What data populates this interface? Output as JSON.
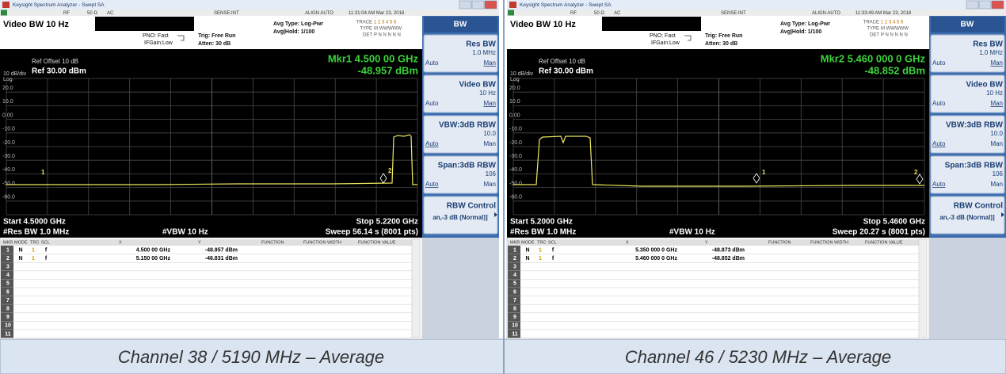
{
  "panels": [
    {
      "window_title": "Keysight Spectrum Analyzer - Swept SA",
      "status": [
        "RF",
        "50 Ω",
        "AC",
        "SENSE:INT",
        "ALIGN AUTO",
        "11:31:04 AM Mar 23, 2018"
      ],
      "active_function": "Video BW 10 Hz",
      "settings": [
        "PNO: Fast",
        "IFGain:Low",
        "Trig: Free Run",
        "Atten: 30 dB",
        "Avg Type: Log-Pwr",
        "Avg|Hold: 1/100"
      ],
      "trace_info": [
        "TRACE",
        "1 2 3 4 5 6",
        "TYPE",
        "M WWWWW",
        "DET",
        "P N N N N N"
      ],
      "ref_offset": "Ref Offset 10 dB",
      "scale": "10 dB/div",
      "log": "Log",
      "ref_level": "Ref 30.00 dBm",
      "marker_readout": [
        "Mkr1 4.500 00 GHz",
        "-48.957 dBm"
      ],
      "y_labels": [
        "20.0",
        "10.0",
        "0.00",
        "-10.0",
        "-20.0",
        "-30.0",
        "-40.0",
        "-50.0",
        "-60.0"
      ],
      "marker_labels": [
        "1",
        "2"
      ],
      "start": "Start 4.5000 GHz",
      "stop": "Stop 5.2200 GHz",
      "res_bw": "#Res BW 1.0 MHz",
      "vbw": "#VBW 10 Hz",
      "sweep": "Sweep  56.14 s (8001 pts)",
      "table": {
        "header": [
          "MKR",
          "MODE",
          "TRC",
          "SCL",
          "X",
          "Y",
          "FUNCTION",
          "FUNCTION WIDTH",
          "FUNCTION VALUE"
        ],
        "rows": [
          [
            "1",
            "N",
            "1",
            "f",
            "4.500 00 GHz",
            "-48.957 dBm"
          ],
          [
            "2",
            "N",
            "1",
            "f",
            "5.150 00 GHz",
            "-46.831 dBm"
          ],
          [
            "3"
          ],
          [
            "4"
          ],
          [
            "5"
          ],
          [
            "6"
          ],
          [
            "7"
          ],
          [
            "8"
          ],
          [
            "9"
          ],
          [
            "10"
          ],
          [
            "11"
          ]
        ]
      },
      "menu": {
        "title": "BW",
        "keys": [
          {
            "label": "Res BW",
            "value": "1.0 MHz",
            "auto": "Auto",
            "man": "Man",
            "selected": "man"
          },
          {
            "label": "Video BW",
            "value": "10 Hz",
            "auto": "Auto",
            "man": "Man",
            "selected": "man"
          },
          {
            "label": "VBW:3dB RBW",
            "value": "10.0",
            "auto": "Auto",
            "man": "Man",
            "selected": "auto"
          },
          {
            "label": "Span:3dB RBW",
            "value": "106",
            "auto": "Auto",
            "man": "Man",
            "selected": "auto"
          },
          {
            "label": "RBW Control",
            "value": "an,-3 dB (Normal)]"
          }
        ]
      },
      "caption": "Channel 38 / 5190 MHz – Average"
    },
    {
      "window_title": "Keysight Spectrum Analyzer - Swept SA",
      "status": [
        "RF",
        "50 Ω",
        "AC",
        "SENSE:INT",
        "ALIGN AUTO",
        "11:33:49 AM Mar 23, 2018"
      ],
      "active_function": "Video BW 10 Hz",
      "settings": [
        "PNO: Fast",
        "IFGain:Low",
        "Trig: Free Run",
        "Atten: 30 dB",
        "Avg Type: Log-Pwr",
        "Avg|Hold: 1/100"
      ],
      "trace_info": [
        "TRACE",
        "1 2 3 4 5 6",
        "TYPE",
        "M WWWWW",
        "DET",
        "P N N N N N"
      ],
      "ref_offset": "Ref Offset 10 dB",
      "scale": "10 dB/div",
      "log": "Log",
      "ref_level": "Ref 30.00 dBm",
      "marker_readout": [
        "Mkr2 5.460 000 0 GHz",
        "-48.852 dBm"
      ],
      "y_labels": [
        "20.0",
        "10.0",
        "0.00",
        "-10.0",
        "-20.0",
        "-30.0",
        "-40.0",
        "-50.0",
        "-60.0"
      ],
      "marker_labels": [
        "1",
        "2"
      ],
      "start": "Start 5.2000 GHz",
      "stop": "Stop 5.4600 GHz",
      "res_bw": "#Res BW 1.0 MHz",
      "vbw": "#VBW 10 Hz",
      "sweep": "Sweep  20.27 s (8001 pts)",
      "table": {
        "header": [
          "MKR",
          "MODE",
          "TRC",
          "SCL",
          "X",
          "Y",
          "FUNCTION",
          "FUNCTION WIDTH",
          "FUNCTION VALUE"
        ],
        "rows": [
          [
            "1",
            "N",
            "1",
            "f",
            "5.350 000 0 GHz",
            "-48.873 dBm"
          ],
          [
            "2",
            "N",
            "1",
            "f",
            "5.460 000 0 GHz",
            "-48.852 dBm"
          ],
          [
            "3"
          ],
          [
            "4"
          ],
          [
            "5"
          ],
          [
            "6"
          ],
          [
            "7"
          ],
          [
            "8"
          ],
          [
            "9"
          ],
          [
            "10"
          ],
          [
            "11"
          ]
        ]
      },
      "menu": {
        "title": "BW",
        "keys": [
          {
            "label": "Res BW",
            "value": "1.0 MHz",
            "auto": "Auto",
            "man": "Man",
            "selected": "man"
          },
          {
            "label": "Video BW",
            "value": "10 Hz",
            "auto": "Auto",
            "man": "Man",
            "selected": "man"
          },
          {
            "label": "VBW:3dB RBW",
            "value": "10.0",
            "auto": "Auto",
            "man": "Man",
            "selected": "auto"
          },
          {
            "label": "Span:3dB RBW",
            "value": "106",
            "auto": "Auto",
            "man": "Man",
            "selected": "auto"
          },
          {
            "label": "RBW Control",
            "value": "an,-3 dB (Normal)]"
          }
        ]
      },
      "caption": "Channel 46 / 5230 MHz – Average"
    }
  ]
}
